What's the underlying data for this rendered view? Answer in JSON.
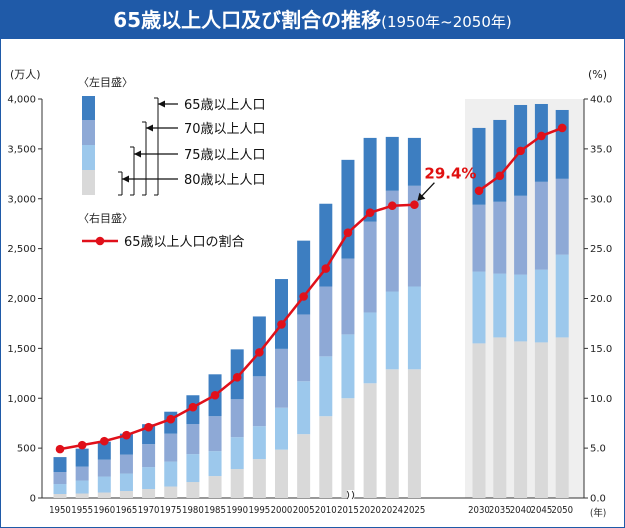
{
  "title": "65歳以上人口及び割合の推移",
  "subtitle": "(1950年~2050年)",
  "colors": {
    "title_bg": "#1f5aa8",
    "age65_69": "#3d7ec1",
    "age70_74": "#8ea9d6",
    "age75_79": "#9cc8ec",
    "age80_plus": "#d9d9d9",
    "ratio_line": "#e0101a",
    "projection_bg": "#efefef"
  },
  "chart_data": {
    "type": "bar",
    "stacked": true,
    "secondary_type": "line",
    "left_axis": {
      "unit_label": "(万人)",
      "ylim": [
        0,
        4000
      ],
      "ticks": [
        "0",
        "500",
        "1,000",
        "1,500",
        "2,000",
        "2,500",
        "3,000",
        "3,500",
        "4,000"
      ]
    },
    "right_axis": {
      "unit_label": "(%)",
      "ylim": [
        0,
        40
      ],
      "ticks": [
        "0.0",
        "5.0",
        "10.0",
        "15.0",
        "20.0",
        "25.0",
        "30.0",
        "35.0",
        "40.0"
      ]
    },
    "x_unit_label": "(年)",
    "categories": [
      "1950",
      "1955",
      "1960",
      "1965",
      "1970",
      "1975",
      "1980",
      "1985",
      "1990",
      "1995",
      "2000",
      "2005",
      "2010",
      "2015",
      "2020",
      "2024",
      "2025",
      "2030",
      "2035",
      "2040",
      "2045",
      "2050"
    ],
    "projection_from": "2030",
    "axis_break_after": "2020",
    "series": [
      {
        "name": "80歳以上人口",
        "values": [
          40,
          45,
          55,
          70,
          90,
          115,
          160,
          220,
          290,
          390,
          485,
          640,
          820,
          1000,
          1150,
          1290,
          1290,
          1550,
          1610,
          1570,
          1560,
          1610
        ]
      },
      {
        "name": "75歳以上人口",
        "values": [
          100,
          130,
          160,
          175,
          220,
          250,
          280,
          250,
          320,
          330,
          420,
          530,
          600,
          640,
          710,
          780,
          830,
          720,
          640,
          670,
          730,
          830
        ]
      },
      {
        "name": "70歳以上人口",
        "values": [
          120,
          140,
          170,
          190,
          230,
          280,
          300,
          350,
          380,
          500,
          590,
          670,
          700,
          760,
          910,
          1010,
          1010,
          670,
          720,
          790,
          880,
          760
        ]
      },
      {
        "name": "65歳以上人口",
        "values": [
          150,
          180,
          180,
          210,
          200,
          220,
          290,
          420,
          500,
          600,
          700,
          740,
          830,
          990,
          840,
          540,
          480,
          770,
          820,
          910,
          780,
          690
        ]
      }
    ],
    "line_series": {
      "name": "65歳以上人口の割合",
      "values": [
        4.9,
        5.3,
        5.7,
        6.3,
        7.1,
        7.9,
        9.1,
        10.3,
        12.1,
        14.6,
        17.4,
        20.2,
        23.0,
        26.6,
        28.6,
        29.3,
        29.4,
        30.8,
        32.3,
        34.8,
        36.3,
        37.1
      ]
    },
    "callout": {
      "category": "2025",
      "text": "29.4%"
    },
    "legend": {
      "left_axis_label": "〈左目盛〉",
      "right_axis_label": "〈右目盛〉",
      "bracket_items": [
        "65歳以上人口",
        "70歳以上人口",
        "75歳以上人口",
        "80歳以上人口"
      ],
      "line_item": "65歳以上人口の割合"
    }
  }
}
